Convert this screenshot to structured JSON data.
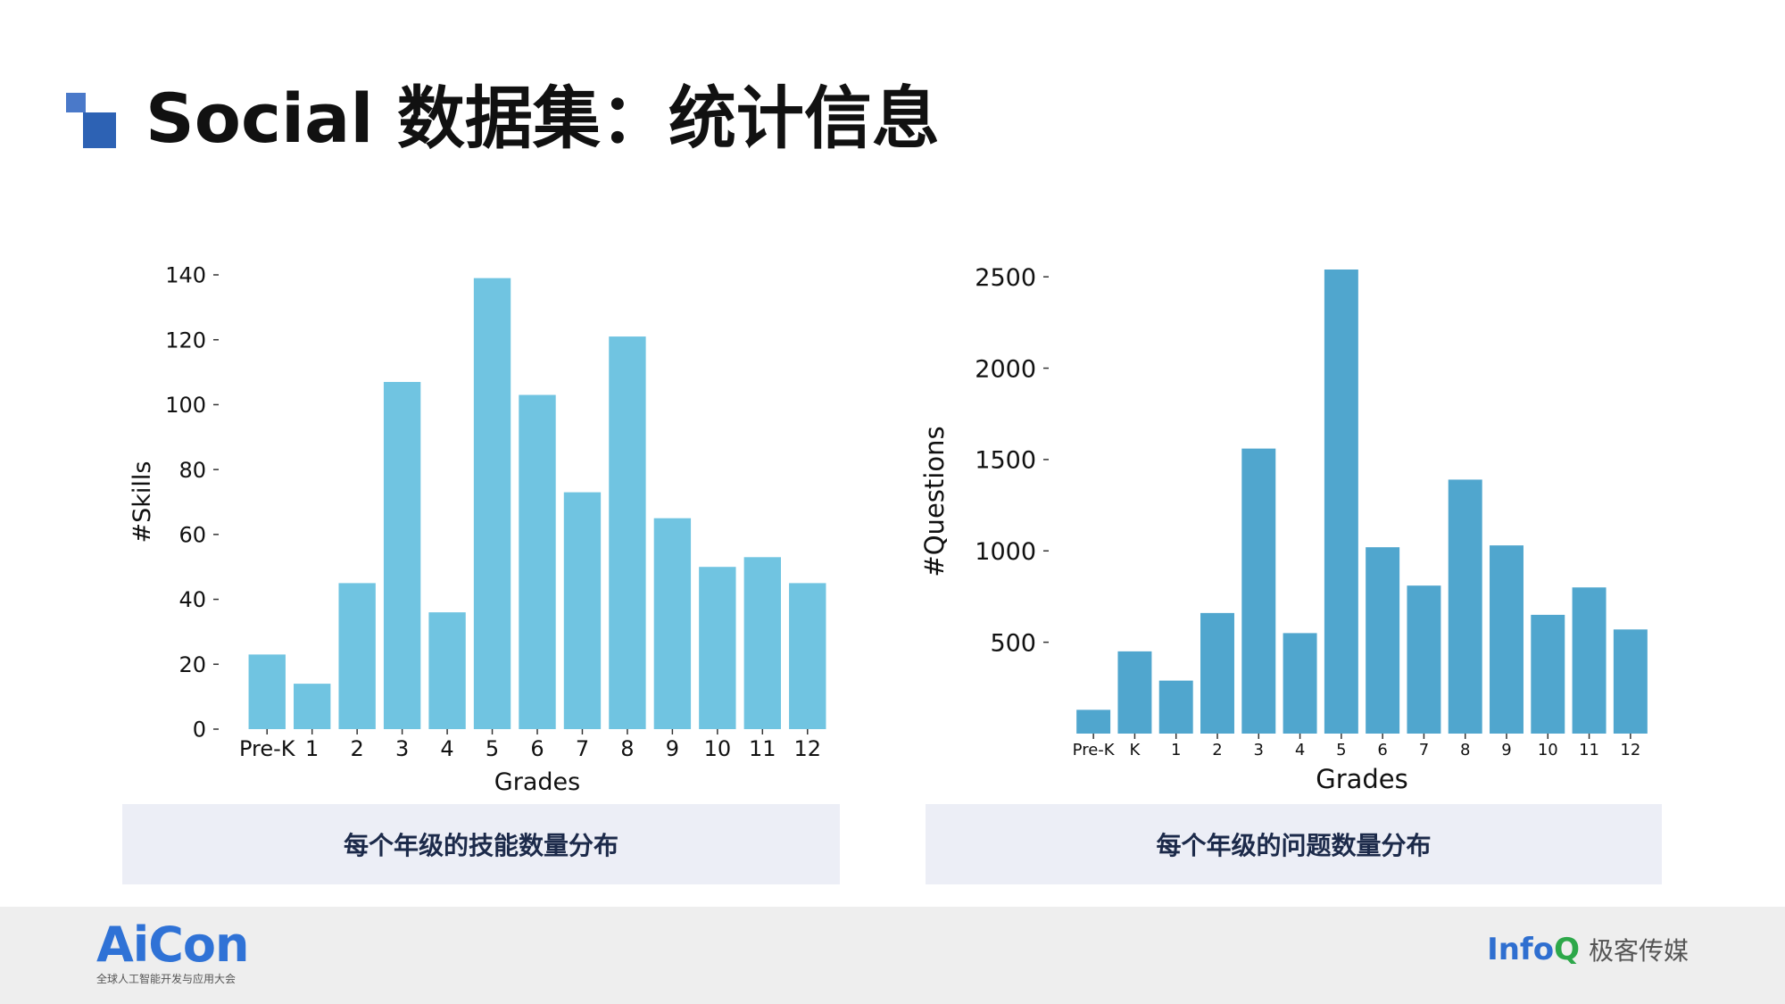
{
  "page": {
    "title": "Social 数据集：统计信息"
  },
  "colors": {
    "title_mark_light": "#4a79c9",
    "title_mark_dark": "#2d62b4",
    "bar_left": "#70c4e1",
    "bar_right": "#50a6ce",
    "caption_bg": "#eceef6",
    "footer_bg": "#eeeeee",
    "aicon_blue": "#2f72d6",
    "infoq_blue": "#2f6fd0",
    "infoq_green": "#2da84a"
  },
  "captions": {
    "left": "每个年级的技能数量分布",
    "right": "每个年级的问题数量分布"
  },
  "footer": {
    "aicon_logo_text": "AiCon",
    "aicon_tagline": "全球人工智能开发与应用大会",
    "infoq_logo_text": "Info",
    "infoq_logo_q": "Q",
    "infoq_cn_text": "极客传媒"
  },
  "chart_data": [
    {
      "type": "bar",
      "categories": [
        "Pre-K",
        "1",
        "2",
        "3",
        "4",
        "5",
        "6",
        "7",
        "8",
        "9",
        "10",
        "11",
        "12"
      ],
      "values": [
        23,
        14,
        45,
        107,
        36,
        139,
        103,
        73,
        121,
        65,
        50,
        53,
        45
      ],
      "title": "",
      "xlabel": "Grades",
      "ylabel": "#Skills",
      "ylim": [
        0,
        140
      ],
      "yticks": [
        0,
        20,
        40,
        60,
        80,
        100,
        120,
        140
      ],
      "grid": false,
      "color": "#70c4e1"
    },
    {
      "type": "bar",
      "categories": [
        "Pre-K",
        "K",
        "1",
        "2",
        "3",
        "4",
        "5",
        "6",
        "7",
        "8",
        "9",
        "10",
        "11",
        "12"
      ],
      "values": [
        130,
        450,
        290,
        660,
        1560,
        550,
        2540,
        1020,
        810,
        1390,
        1030,
        650,
        800,
        570
      ],
      "title": "",
      "xlabel": "Grades",
      "ylabel": "#Questions",
      "ylim": [
        0,
        2540
      ],
      "yticks": [
        500,
        1000,
        1500,
        2000,
        2500
      ],
      "grid": false,
      "color": "#50a6ce"
    }
  ]
}
